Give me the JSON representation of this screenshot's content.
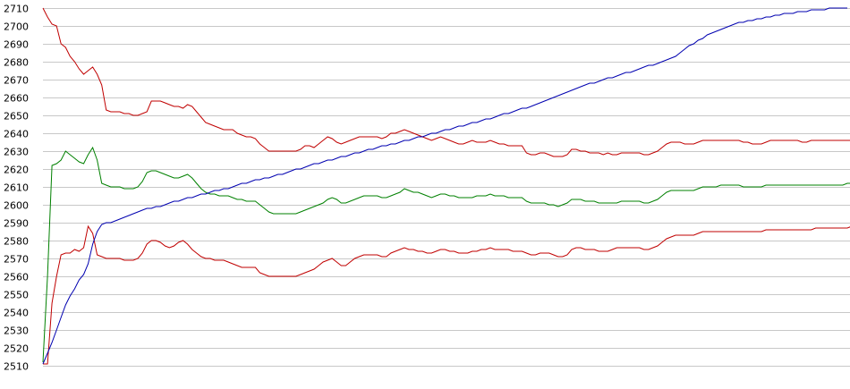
{
  "chart_data": {
    "type": "line",
    "ylim": [
      2510,
      2710
    ],
    "yticks": [
      2510,
      2520,
      2530,
      2540,
      2550,
      2560,
      2570,
      2580,
      2590,
      2600,
      2610,
      2620,
      2630,
      2640,
      2650,
      2660,
      2670,
      2680,
      2690,
      2700,
      2710
    ],
    "grid": "horizontal",
    "x_count": 179,
    "series": [
      {
        "role": "upper-band",
        "color": "#c00000",
        "values": [
          2710,
          2705,
          2701,
          2700,
          2690,
          2688,
          2683,
          2680,
          2676,
          2673,
          2675,
          2677,
          2673,
          2667,
          2653,
          2652,
          2652,
          2652,
          2651,
          2651,
          2650,
          2650,
          2651,
          2652,
          2658,
          2658,
          2658,
          2657,
          2656,
          2655,
          2655,
          2654,
          2656,
          2655,
          2652,
          2649,
          2646,
          2645,
          2644,
          2643,
          2642,
          2642,
          2642,
          2640,
          2639,
          2638,
          2638,
          2637,
          2634,
          2632,
          2630,
          2630,
          2630,
          2630,
          2630,
          2630,
          2630,
          2631,
          2633,
          2633,
          2632,
          2634,
          2636,
          2638,
          2637,
          2635,
          2634,
          2635,
          2636,
          2637,
          2638,
          2638,
          2638,
          2638,
          2638,
          2637,
          2638,
          2640,
          2640,
          2641,
          2642,
          2641,
          2640,
          2639,
          2638,
          2637,
          2636,
          2637,
          2638,
          2637,
          2636,
          2635,
          2634,
          2634,
          2635,
          2636,
          2635,
          2635,
          2635,
          2636,
          2635,
          2634,
          2634,
          2633,
          2633,
          2633,
          2633,
          2629,
          2628,
          2628,
          2629,
          2629,
          2628,
          2627,
          2627,
          2627,
          2628,
          2631,
          2631,
          2630,
          2630,
          2629,
          2629,
          2629,
          2628,
          2629,
          2628,
          2628,
          2629,
          2629,
          2629,
          2629,
          2629,
          2628,
          2628,
          2629,
          2630,
          2632,
          2634,
          2635,
          2635,
          2635,
          2634,
          2634,
          2634,
          2635,
          2636,
          2636,
          2636,
          2636,
          2636,
          2636,
          2636,
          2636,
          2636,
          2635,
          2635,
          2634,
          2634,
          2634,
          2635,
          2636,
          2636,
          2636,
          2636,
          2636,
          2636,
          2636,
          2635,
          2635,
          2636,
          2636,
          2636,
          2636,
          2636,
          2636,
          2636,
          2636,
          2636,
          2636,
          2636
        ]
      },
      {
        "role": "middle",
        "color": "#008000",
        "values": [
          2512,
          2560,
          2622,
          2623,
          2625,
          2630,
          2628,
          2626,
          2624,
          2623,
          2628,
          2632,
          2625,
          2612,
          2611,
          2610,
          2610,
          2610,
          2609,
          2609,
          2609,
          2610,
          2613,
          2618,
          2619,
          2619,
          2618,
          2617,
          2616,
          2615,
          2615,
          2616,
          2617,
          2615,
          2612,
          2609,
          2607,
          2606,
          2606,
          2605,
          2605,
          2605,
          2604,
          2603,
          2603,
          2602,
          2602,
          2602,
          2600,
          2598,
          2596,
          2595,
          2595,
          2595,
          2595,
          2595,
          2595,
          2596,
          2597,
          2598,
          2599,
          2600,
          2601,
          2603,
          2604,
          2603,
          2601,
          2601,
          2602,
          2603,
          2604,
          2605,
          2605,
          2605,
          2605,
          2604,
          2604,
          2605,
          2606,
          2607,
          2609,
          2608,
          2607,
          2607,
          2606,
          2605,
          2604,
          2605,
          2606,
          2606,
          2605,
          2605,
          2604,
          2604,
          2604,
          2604,
          2605,
          2605,
          2605,
          2606,
          2605,
          2605,
          2605,
          2604,
          2604,
          2604,
          2604,
          2602,
          2601,
          2601,
          2601,
          2601,
          2600,
          2600,
          2599,
          2600,
          2601,
          2603,
          2603,
          2603,
          2602,
          2602,
          2602,
          2601,
          2601,
          2601,
          2601,
          2601,
          2602,
          2602,
          2602,
          2602,
          2602,
          2601,
          2601,
          2602,
          2603,
          2605,
          2607,
          2608,
          2608,
          2608,
          2608,
          2608,
          2608,
          2609,
          2610,
          2610,
          2610,
          2610,
          2611,
          2611,
          2611,
          2611,
          2611,
          2610,
          2610,
          2610,
          2610,
          2610,
          2611,
          2611,
          2611,
          2611,
          2611,
          2611,
          2611,
          2611,
          2611,
          2611,
          2611,
          2611,
          2611,
          2611,
          2611,
          2611,
          2611,
          2611,
          2612,
          2612,
          2612
        ]
      },
      {
        "role": "lower-band",
        "color": "#c00000",
        "values": [
          2511,
          2511,
          2545,
          2560,
          2572,
          2573,
          2573,
          2575,
          2574,
          2576,
          2588,
          2584,
          2572,
          2571,
          2570,
          2570,
          2570,
          2570,
          2569,
          2569,
          2569,
          2570,
          2573,
          2578,
          2580,
          2580,
          2579,
          2577,
          2576,
          2577,
          2579,
          2580,
          2578,
          2575,
          2573,
          2571,
          2570,
          2570,
          2569,
          2569,
          2569,
          2568,
          2567,
          2566,
          2565,
          2565,
          2565,
          2565,
          2562,
          2561,
          2560,
          2560,
          2560,
          2560,
          2560,
          2560,
          2560,
          2561,
          2562,
          2563,
          2564,
          2566,
          2568,
          2569,
          2570,
          2568,
          2566,
          2566,
          2568,
          2570,
          2571,
          2572,
          2572,
          2572,
          2572,
          2571,
          2571,
          2573,
          2574,
          2575,
          2576,
          2575,
          2575,
          2574,
          2574,
          2573,
          2573,
          2574,
          2575,
          2575,
          2574,
          2574,
          2573,
          2573,
          2573,
          2574,
          2574,
          2575,
          2575,
          2576,
          2575,
          2575,
          2575,
          2575,
          2574,
          2574,
          2574,
          2573,
          2572,
          2572,
          2573,
          2573,
          2573,
          2572,
          2571,
          2571,
          2572,
          2575,
          2576,
          2576,
          2575,
          2575,
          2575,
          2574,
          2574,
          2574,
          2575,
          2576,
          2576,
          2576,
          2576,
          2576,
          2576,
          2575,
          2575,
          2576,
          2577,
          2579,
          2581,
          2582,
          2583,
          2583,
          2583,
          2583,
          2583,
          2584,
          2585,
          2585,
          2585,
          2585,
          2585,
          2585,
          2585,
          2585,
          2585,
          2585,
          2585,
          2585,
          2585,
          2585,
          2586,
          2586,
          2586,
          2586,
          2586,
          2586,
          2586,
          2586,
          2586,
          2586,
          2586,
          2587,
          2587,
          2587,
          2587,
          2587,
          2587,
          2587,
          2587,
          2588,
          2588
        ]
      },
      {
        "role": "trend",
        "color": "#0000b0",
        "values": [
          2511,
          2517,
          2523,
          2530,
          2537,
          2544,
          2549,
          2553,
          2558,
          2561,
          2567,
          2578,
          2585,
          2589,
          2590,
          2590,
          2591,
          2592,
          2593,
          2594,
          2595,
          2596,
          2597,
          2598,
          2598,
          2599,
          2599,
          2600,
          2601,
          2602,
          2602,
          2603,
          2604,
          2604,
          2605,
          2606,
          2606,
          2607,
          2608,
          2608,
          2609,
          2609,
          2610,
          2611,
          2612,
          2612,
          2613,
          2614,
          2614,
          2615,
          2615,
          2616,
          2617,
          2617,
          2618,
          2619,
          2620,
          2620,
          2621,
          2622,
          2623,
          2623,
          2624,
          2625,
          2625,
          2626,
          2627,
          2627,
          2628,
          2629,
          2629,
          2630,
          2631,
          2631,
          2632,
          2633,
          2633,
          2634,
          2634,
          2635,
          2636,
          2636,
          2637,
          2638,
          2638,
          2639,
          2640,
          2640,
          2641,
          2642,
          2642,
          2643,
          2644,
          2644,
          2645,
          2646,
          2646,
          2647,
          2648,
          2648,
          2649,
          2650,
          2651,
          2651,
          2652,
          2653,
          2654,
          2654,
          2655,
          2656,
          2657,
          2658,
          2659,
          2660,
          2661,
          2662,
          2663,
          2664,
          2665,
          2666,
          2667,
          2668,
          2668,
          2669,
          2670,
          2671,
          2671,
          2672,
          2673,
          2674,
          2674,
          2675,
          2676,
          2677,
          2678,
          2678,
          2679,
          2680,
          2681,
          2682,
          2683,
          2685,
          2687,
          2689,
          2690,
          2692,
          2693,
          2695,
          2696,
          2697,
          2698,
          2699,
          2700,
          2701,
          2702,
          2702,
          2703,
          2703,
          2704,
          2704,
          2705,
          2705,
          2706,
          2706,
          2707,
          2707,
          2707,
          2708,
          2708,
          2708,
          2709,
          2709,
          2709,
          2709,
          2710,
          2710,
          2710,
          2710,
          2710
        ]
      }
    ]
  }
}
